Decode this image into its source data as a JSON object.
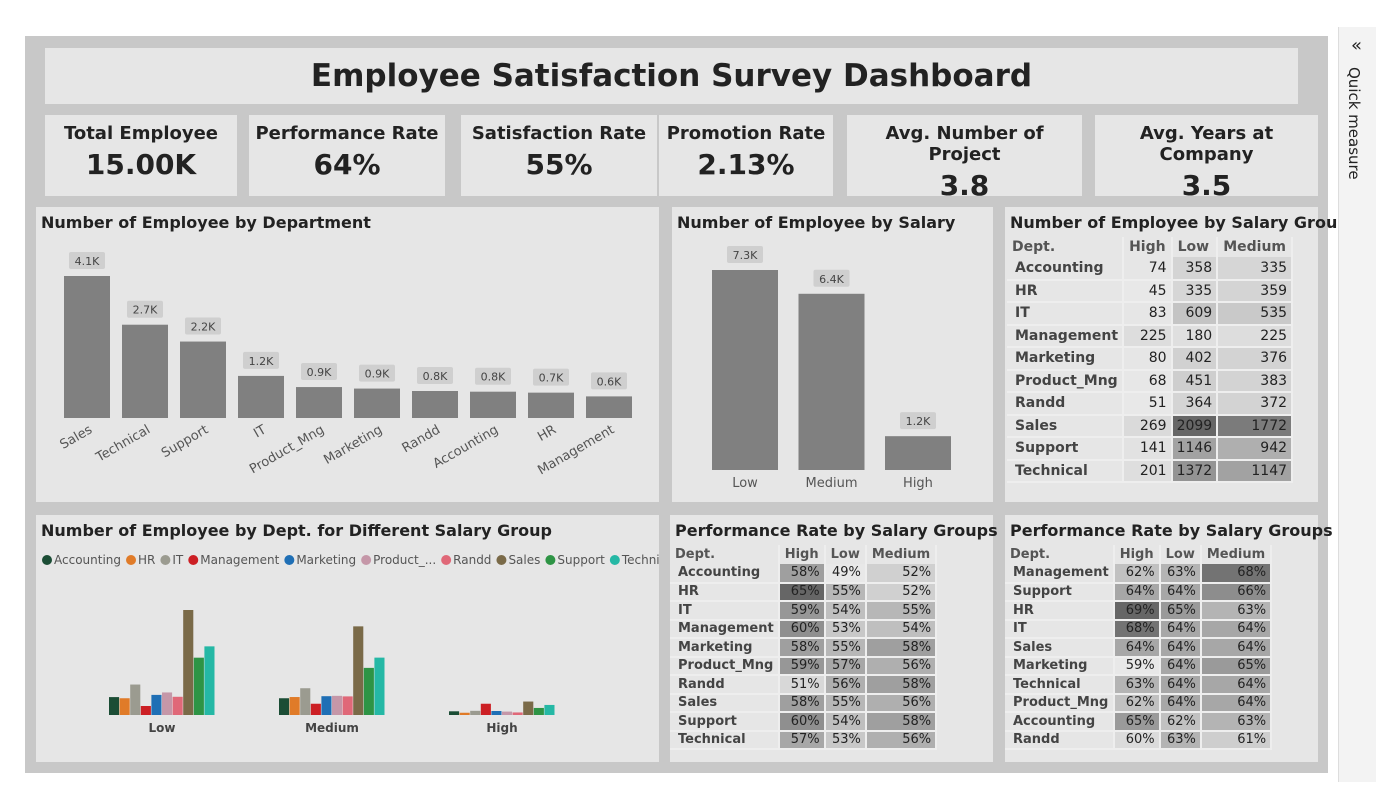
{
  "title": "Employee Satisfaction Survey Dashboard",
  "kpis": [
    {
      "label": "Total Employee",
      "value": "15.00K"
    },
    {
      "label": "Performance Rate",
      "value": "64%"
    },
    {
      "label": "Satisfaction Rate",
      "value": "55%"
    },
    {
      "label": "Promotion Rate",
      "value": "2.13%"
    },
    {
      "label": "Avg. Number of Project",
      "value": "3.8"
    },
    {
      "label": "Avg. Years at Company",
      "value": "3.5"
    }
  ],
  "quick_measure": {
    "label": "Quick measure",
    "icon": "double-chevron-left-icon"
  },
  "chart_data": [
    {
      "type": "bar",
      "title": "Number of Employee by Department",
      "color": "#808080",
      "categories": [
        "Sales",
        "Technical",
        "Support",
        "IT",
        "Product_Mng",
        "Marketing",
        "Randd",
        "Accounting",
        "HR",
        "Management"
      ],
      "values": [
        4140,
        2720,
        2229,
        1227,
        902,
        858,
        787,
        767,
        739,
        630
      ],
      "labels": [
        "4.1K",
        "2.7K",
        "2.2K",
        "1.2K",
        "0.9K",
        "0.9K",
        "0.8K",
        "0.8K",
        "0.7K",
        "0.6K"
      ]
    },
    {
      "type": "bar",
      "title": "Number of Employee by Salary",
      "color": "#808080",
      "categories": [
        "Low",
        "Medium",
        "High"
      ],
      "values": [
        7316,
        6446,
        1237
      ],
      "labels": [
        "7.3K",
        "6.4K",
        "1.2K"
      ]
    },
    {
      "type": "bar",
      "title": "Number of Employee by Dept. for Different Salary Group",
      "legend": "top-left",
      "categories": [
        "Low",
        "Medium",
        "High"
      ],
      "series": [
        {
          "name": "Accounting",
          "color": "#1b4d35",
          "values": [
            358,
            335,
            74
          ]
        },
        {
          "name": "HR",
          "color": "#e07b28",
          "values": [
            335,
            359,
            45
          ]
        },
        {
          "name": "IT",
          "color": "#9b9b90",
          "values": [
            609,
            535,
            83
          ]
        },
        {
          "name": "Management",
          "color": "#cc1f24",
          "values": [
            180,
            225,
            225
          ]
        },
        {
          "name": "Marketing",
          "color": "#1f6fb5",
          "values": [
            402,
            376,
            80
          ]
        },
        {
          "name": "Product_...",
          "color": "#c597a8",
          "values": [
            451,
            383,
            68
          ]
        },
        {
          "name": "Randd",
          "color": "#e06878",
          "values": [
            364,
            372,
            51
          ]
        },
        {
          "name": "Sales",
          "color": "#7a6a48",
          "values": [
            2099,
            1772,
            269
          ]
        },
        {
          "name": "Support",
          "color": "#2e9445",
          "values": [
            1146,
            942,
            141
          ]
        },
        {
          "name": "Technical",
          "color": "#25b8a5",
          "values": [
            1372,
            1147,
            201
          ]
        }
      ]
    }
  ],
  "tables": [
    {
      "title": "Number of Employee by Salary Groups",
      "columns": [
        "Dept.",
        "High",
        "Low",
        "Medium"
      ],
      "rows": [
        [
          "Accounting",
          "74",
          "358",
          "335"
        ],
        [
          "HR",
          "45",
          "335",
          "359"
        ],
        [
          "IT",
          "83",
          "609",
          "535"
        ],
        [
          "Management",
          "225",
          "180",
          "225"
        ],
        [
          "Marketing",
          "80",
          "402",
          "376"
        ],
        [
          "Product_Mng",
          "68",
          "451",
          "383"
        ],
        [
          "Randd",
          "51",
          "364",
          "372"
        ],
        [
          "Sales",
          "269",
          "2099",
          "1772"
        ],
        [
          "Support",
          "141",
          "1146",
          "942"
        ],
        [
          "Technical",
          "201",
          "1372",
          "1147"
        ]
      ]
    },
    {
      "title": "Performance Rate by Salary Groups",
      "columns": [
        "Dept.",
        "High",
        "Low",
        "Medium"
      ],
      "rows": [
        [
          "Accounting",
          "58%",
          "49%",
          "52%"
        ],
        [
          "HR",
          "65%",
          "55%",
          "52%"
        ],
        [
          "IT",
          "59%",
          "54%",
          "55%"
        ],
        [
          "Management",
          "60%",
          "53%",
          "54%"
        ],
        [
          "Marketing",
          "58%",
          "55%",
          "58%"
        ],
        [
          "Product_Mng",
          "59%",
          "57%",
          "56%"
        ],
        [
          "Randd",
          "51%",
          "56%",
          "58%"
        ],
        [
          "Sales",
          "58%",
          "55%",
          "56%"
        ],
        [
          "Support",
          "60%",
          "54%",
          "58%"
        ],
        [
          "Technical",
          "57%",
          "53%",
          "56%"
        ]
      ]
    },
    {
      "title": "Performance Rate by Salary Groups",
      "columns": [
        "Dept.",
        "High",
        "Low",
        "Medium"
      ],
      "rows": [
        [
          "Management",
          "62%",
          "63%",
          "68%"
        ],
        [
          "Support",
          "64%",
          "64%",
          "66%"
        ],
        [
          "HR",
          "69%",
          "65%",
          "63%"
        ],
        [
          "IT",
          "68%",
          "64%",
          "64%"
        ],
        [
          "Sales",
          "64%",
          "64%",
          "64%"
        ],
        [
          "Marketing",
          "59%",
          "64%",
          "65%"
        ],
        [
          "Technical",
          "63%",
          "64%",
          "64%"
        ],
        [
          "Product_Mng",
          "62%",
          "64%",
          "64%"
        ],
        [
          "Accounting",
          "65%",
          "62%",
          "63%"
        ],
        [
          "Randd",
          "60%",
          "63%",
          "61%"
        ]
      ]
    }
  ]
}
